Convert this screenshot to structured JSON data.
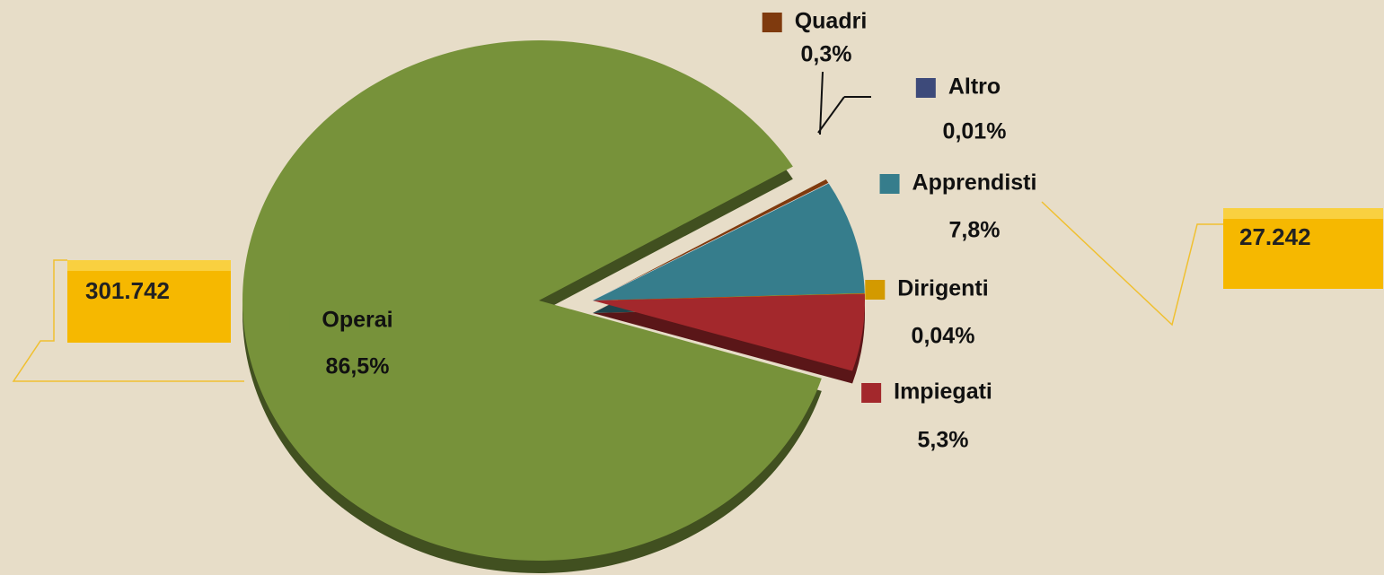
{
  "chart_data": {
    "type": "pie",
    "categories": [
      "Quadri",
      "Altro",
      "Apprendisti",
      "Dirigenti",
      "Impiegati",
      "Operai"
    ],
    "values": [
      0.3,
      0.01,
      7.8,
      0.04,
      5.3,
      86.5
    ],
    "value_labels": [
      "0,3%",
      "0,01%",
      "7,8%",
      "0,04%",
      "5,3%",
      "86,5%"
    ],
    "colors": [
      "#7f3a0e",
      "#3d4a7a",
      "#367d8c",
      "#d39a00",
      "#a3282c",
      "#77923a"
    ],
    "annotations": [
      "301.742",
      "27.242"
    ]
  }
}
